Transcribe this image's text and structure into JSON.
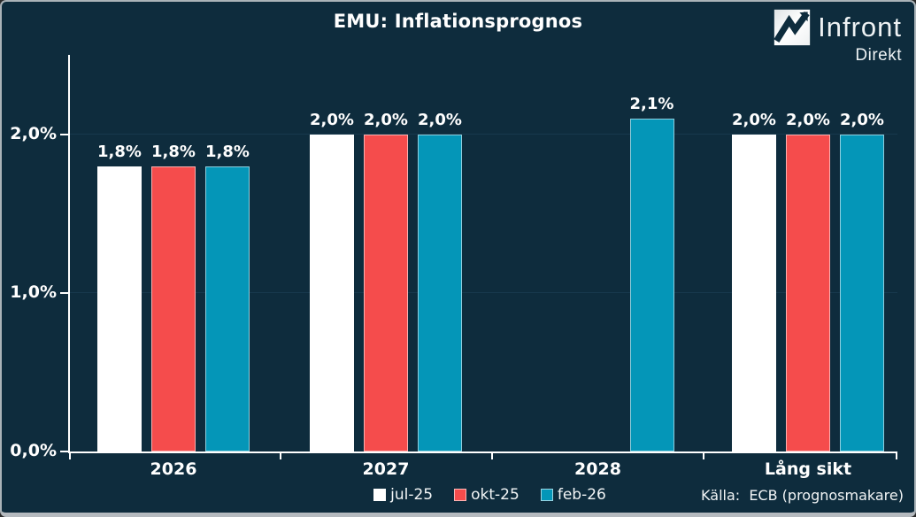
{
  "header": {
    "title": "EMU: Inflationsprognos"
  },
  "logo": {
    "brand": "Infront",
    "product": "Direkt",
    "icon": "zigzag-chart-icon"
  },
  "footer": {
    "source": "Källa:  ECB (prognosmakare)"
  },
  "colors": {
    "background": "#0e2c3d",
    "text": "#ffffff",
    "axis": "#ffffff",
    "gridline": "#17384c",
    "series_jul25": "#ffffff",
    "series_okt25": "#f54c4c",
    "series_feb26": "#0496b8",
    "frame_border": "#b5babf"
  },
  "chart_data": {
    "type": "bar",
    "title": "EMU: Inflationsprognos",
    "categories": [
      "2026",
      "2027",
      "2028",
      "Lång sikt"
    ],
    "series": [
      {
        "name": "jul-25",
        "color": "#ffffff",
        "values": [
          1.8,
          2.0,
          null,
          2.0
        ]
      },
      {
        "name": "okt-25",
        "color": "#f54c4c",
        "values": [
          1.8,
          2.0,
          null,
          2.0
        ]
      },
      {
        "name": "feb-26",
        "color": "#0496b8",
        "values": [
          1.8,
          2.0,
          2.1,
          2.0
        ]
      }
    ],
    "data_labels": [
      [
        "1,8%",
        "2,0%",
        "",
        "2,0%"
      ],
      [
        "1,8%",
        "2,0%",
        "",
        "2,0%"
      ],
      [
        "1,8%",
        "2,0%",
        "2,1%",
        "2,0%"
      ]
    ],
    "y_axis": {
      "ticks": [
        {
          "label": "0,0%",
          "value": 0.0
        },
        {
          "label": "1,0%",
          "value": 1.0
        },
        {
          "label": "2,0%",
          "value": 2.0
        }
      ],
      "min": 0.0,
      "max": 2.5
    },
    "xlabel": "",
    "ylabel": "",
    "grid": "faint horizontal lines at labeled ticks",
    "legend_position": "bottom-center",
    "source": "Källa:  ECB (prognosmakare)"
  }
}
